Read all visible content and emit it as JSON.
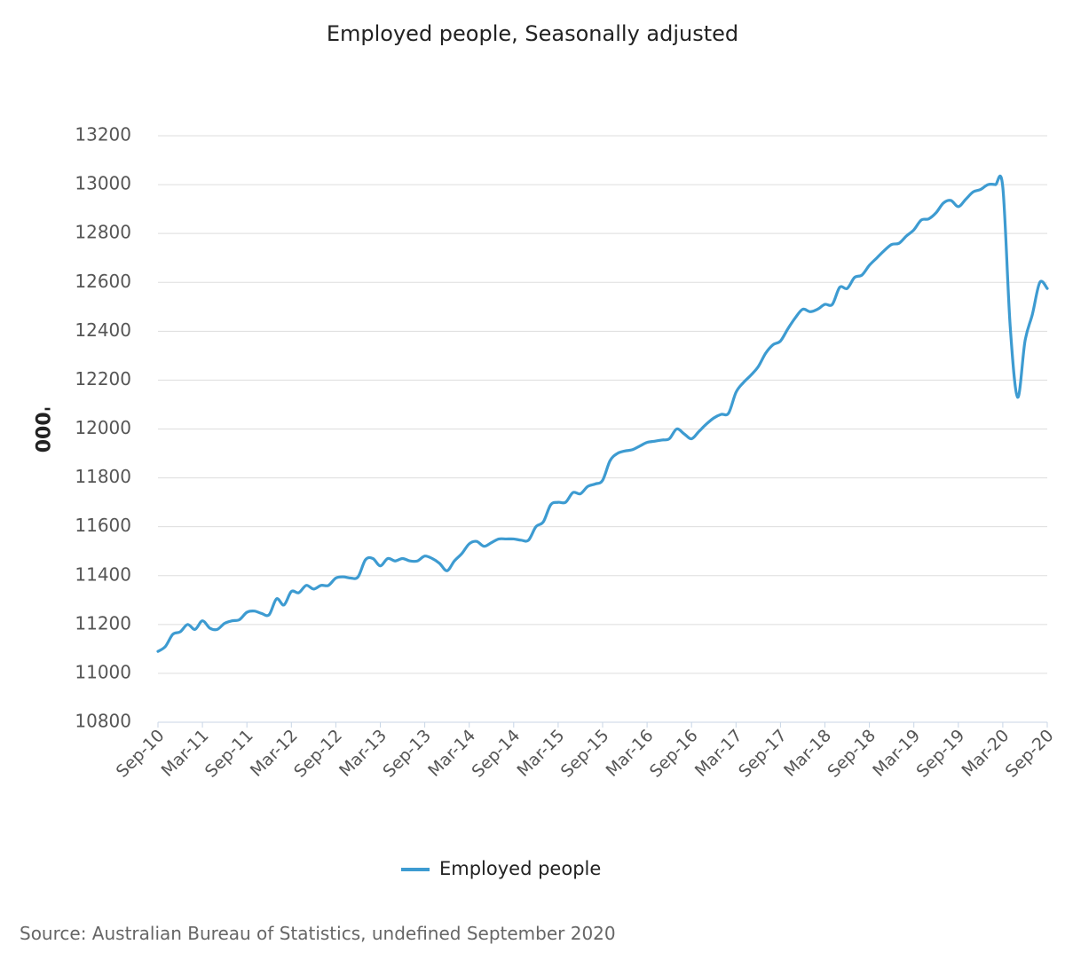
{
  "chart_data": {
    "type": "line",
    "title": "Employed people, Seasonally adjusted",
    "ylabel": "'000",
    "xlabel": "",
    "ylim": [
      10800,
      13200
    ],
    "yticks": [
      10800,
      11000,
      11200,
      11400,
      11600,
      11800,
      12000,
      12200,
      12400,
      12600,
      12800,
      13000,
      13200
    ],
    "grid": true,
    "legend": "bottom-center",
    "x_tick_labels": [
      "Sep-10",
      "Mar-11",
      "Sep-11",
      "Mar-12",
      "Sep-12",
      "Mar-13",
      "Sep-13",
      "Mar-14",
      "Sep-14",
      "Mar-15",
      "Sep-15",
      "Mar-16",
      "Sep-16",
      "Mar-17",
      "Sep-17",
      "Mar-18",
      "Sep-18",
      "Mar-19",
      "Sep-19",
      "Mar-20",
      "Sep-20"
    ],
    "colors": {
      "series": "#3d9bd1",
      "grid": "#dddddd",
      "axis": "#c8d6e6",
      "text": "#555555"
    },
    "series": [
      {
        "name": "Employed people",
        "x": [
          "Sep-10",
          "Oct-10",
          "Nov-10",
          "Dec-10",
          "Jan-11",
          "Feb-11",
          "Mar-11",
          "Apr-11",
          "May-11",
          "Jun-11",
          "Jul-11",
          "Aug-11",
          "Sep-11",
          "Oct-11",
          "Nov-11",
          "Dec-11",
          "Jan-12",
          "Feb-12",
          "Mar-12",
          "Apr-12",
          "May-12",
          "Jun-12",
          "Jul-12",
          "Aug-12",
          "Sep-12",
          "Oct-12",
          "Nov-12",
          "Dec-12",
          "Jan-13",
          "Feb-13",
          "Mar-13",
          "Apr-13",
          "May-13",
          "Jun-13",
          "Jul-13",
          "Aug-13",
          "Sep-13",
          "Oct-13",
          "Nov-13",
          "Dec-13",
          "Jan-14",
          "Feb-14",
          "Mar-14",
          "Apr-14",
          "May-14",
          "Jun-14",
          "Jul-14",
          "Aug-14",
          "Sep-14",
          "Oct-14",
          "Nov-14",
          "Dec-14",
          "Jan-15",
          "Feb-15",
          "Mar-15",
          "Apr-15",
          "May-15",
          "Jun-15",
          "Jul-15",
          "Aug-15",
          "Sep-15",
          "Oct-15",
          "Nov-15",
          "Dec-15",
          "Jan-16",
          "Feb-16",
          "Mar-16",
          "Apr-16",
          "May-16",
          "Jun-16",
          "Jul-16",
          "Aug-16",
          "Sep-16",
          "Oct-16",
          "Nov-16",
          "Dec-16",
          "Jan-17",
          "Feb-17",
          "Mar-17",
          "Apr-17",
          "May-17",
          "Jun-17",
          "Jul-17",
          "Aug-17",
          "Sep-17",
          "Oct-17",
          "Nov-17",
          "Dec-17",
          "Jan-18",
          "Feb-18",
          "Mar-18",
          "Apr-18",
          "May-18",
          "Jun-18",
          "Jul-18",
          "Aug-18",
          "Sep-18",
          "Oct-18",
          "Nov-18",
          "Dec-18",
          "Jan-19",
          "Feb-19",
          "Mar-19",
          "Apr-19",
          "May-19",
          "Jun-19",
          "Jul-19",
          "Aug-19",
          "Sep-19",
          "Oct-19",
          "Nov-19",
          "Dec-19",
          "Jan-20",
          "Feb-20",
          "Mar-20",
          "Apr-20",
          "May-20",
          "Jun-20",
          "Jul-20",
          "Aug-20",
          "Sep-20"
        ],
        "values": [
          11090,
          11110,
          11160,
          11170,
          11200,
          11180,
          11215,
          11185,
          11180,
          11205,
          11215,
          11220,
          11250,
          11255,
          11245,
          11240,
          11305,
          11280,
          11335,
          11330,
          11360,
          11345,
          11360,
          11360,
          11390,
          11395,
          11390,
          11395,
          11465,
          11470,
          11440,
          11470,
          11460,
          11470,
          11460,
          11460,
          11480,
          11470,
          11450,
          11420,
          11460,
          11490,
          11530,
          11540,
          11520,
          11535,
          11550,
          11550,
          11550,
          11545,
          11545,
          11600,
          11620,
          11690,
          11700,
          11700,
          11740,
          11735,
          11765,
          11775,
          11790,
          11870,
          11900,
          11910,
          11915,
          11930,
          11945,
          11950,
          11955,
          11960,
          12000,
          11980,
          11960,
          11990,
          12020,
          12045,
          12060,
          12065,
          12150,
          12190,
          12220,
          12255,
          12310,
          12345,
          12360,
          12410,
          12455,
          12490,
          12480,
          12490,
          12510,
          12510,
          12580,
          12575,
          12620,
          12630,
          12670,
          12700,
          12730,
          12755,
          12760,
          12790,
          12815,
          12855,
          12860,
          12885,
          12925,
          12935,
          12910,
          12940,
          12970,
          12980,
          13000,
          13000,
          12990,
          12420,
          12130,
          12360,
          12470,
          12600,
          12575
        ]
      }
    ]
  },
  "footer": {
    "source": "Source: Australian Bureau of Statistics, undefined September 2020"
  }
}
